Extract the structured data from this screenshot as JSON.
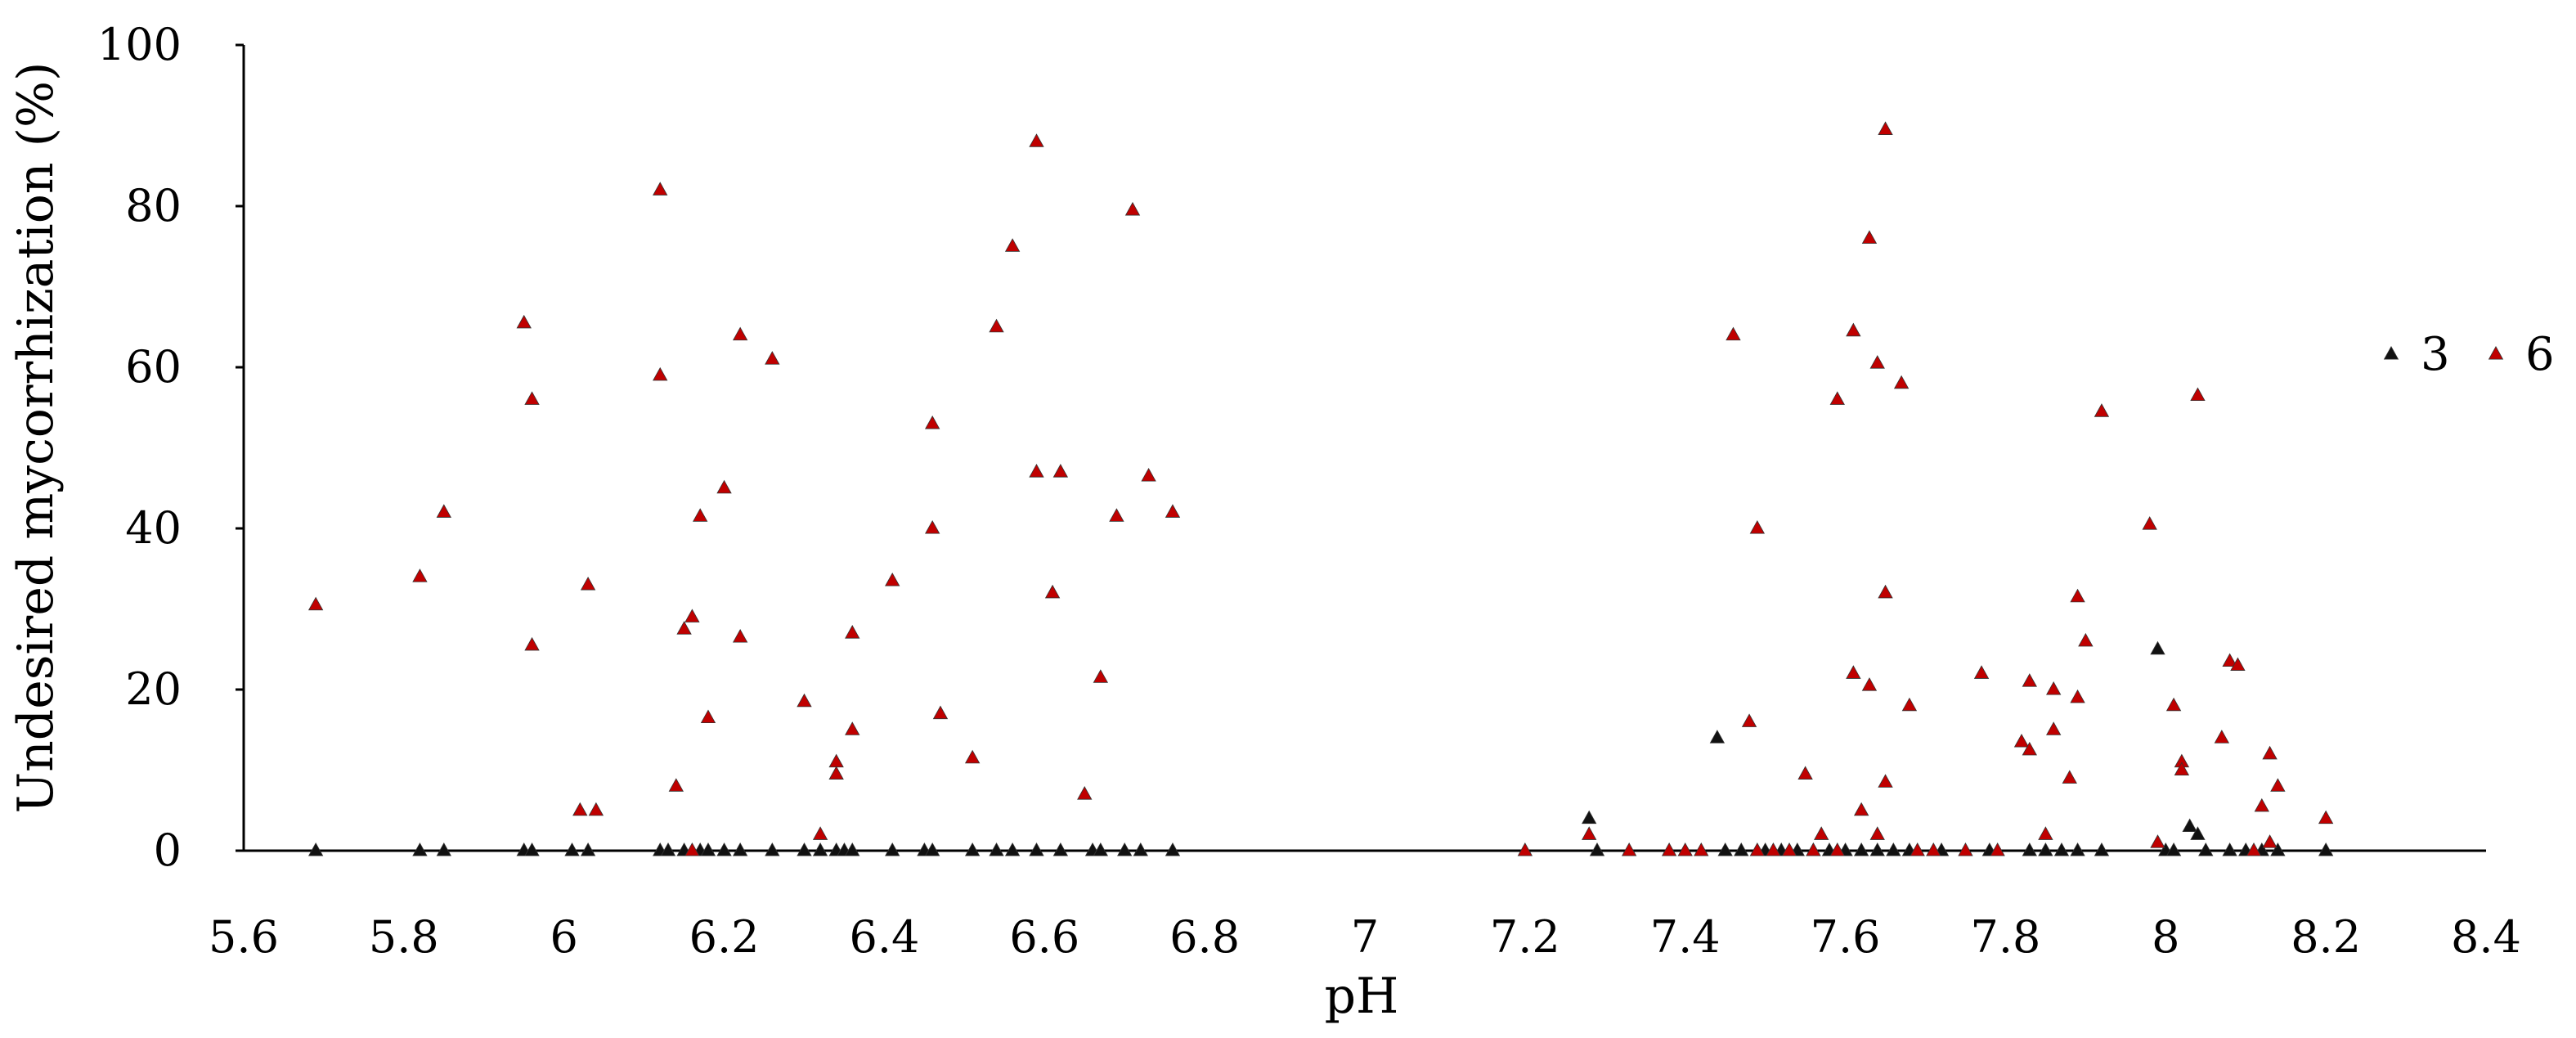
{
  "chart_data": {
    "type": "scatter",
    "title": "",
    "xlabel": "pH",
    "ylabel": "Undesired mycorrhization (%)",
    "xlim": [
      5.6,
      8.4
    ],
    "ylim": [
      0,
      100
    ],
    "x_ticks": [
      "5.6",
      "5.8",
      "6",
      "6.2",
      "6.4",
      "6.6",
      "6.8",
      "7",
      "7.2",
      "7.4",
      "7.6",
      "7.8",
      "8",
      "8.2",
      "8.4"
    ],
    "y_ticks": [
      "0",
      "20",
      "40",
      "60",
      "80",
      "100"
    ],
    "grid": false,
    "legend_position": "right",
    "series": [
      {
        "name": "3",
        "color": "#111111",
        "marker": "triangle",
        "points": [
          [
            5.69,
            0
          ],
          [
            5.82,
            0
          ],
          [
            5.85,
            0
          ],
          [
            5.95,
            0
          ],
          [
            5.96,
            0
          ],
          [
            6.01,
            0
          ],
          [
            6.03,
            0
          ],
          [
            6.12,
            0
          ],
          [
            6.13,
            0
          ],
          [
            6.15,
            0
          ],
          [
            6.17,
            0
          ],
          [
            6.18,
            0
          ],
          [
            6.2,
            0
          ],
          [
            6.22,
            0
          ],
          [
            6.26,
            0
          ],
          [
            6.3,
            0
          ],
          [
            6.32,
            0
          ],
          [
            6.34,
            0
          ],
          [
            6.35,
            0
          ],
          [
            6.36,
            0
          ],
          [
            6.41,
            0
          ],
          [
            6.45,
            0
          ],
          [
            6.46,
            0
          ],
          [
            6.51,
            0
          ],
          [
            6.54,
            0
          ],
          [
            6.56,
            0
          ],
          [
            6.59,
            0
          ],
          [
            6.62,
            0
          ],
          [
            6.66,
            0
          ],
          [
            6.67,
            0
          ],
          [
            6.7,
            0
          ],
          [
            6.72,
            0
          ],
          [
            6.76,
            0
          ],
          [
            7.28,
            4
          ],
          [
            7.29,
            0
          ],
          [
            7.44,
            14
          ],
          [
            7.45,
            0
          ],
          [
            7.47,
            0
          ],
          [
            7.5,
            0
          ],
          [
            7.52,
            0
          ],
          [
            7.54,
            0
          ],
          [
            7.56,
            0
          ],
          [
            7.58,
            0
          ],
          [
            7.6,
            0
          ],
          [
            7.62,
            0
          ],
          [
            7.64,
            0
          ],
          [
            7.66,
            0
          ],
          [
            7.68,
            0
          ],
          [
            7.72,
            0
          ],
          [
            7.78,
            0
          ],
          [
            7.83,
            0
          ],
          [
            7.85,
            0
          ],
          [
            7.87,
            0
          ],
          [
            7.89,
            0
          ],
          [
            7.92,
            0
          ],
          [
            7.99,
            25
          ],
          [
            8.0,
            0
          ],
          [
            8.01,
            0
          ],
          [
            8.03,
            3
          ],
          [
            8.04,
            2
          ],
          [
            8.05,
            0
          ],
          [
            8.08,
            0
          ],
          [
            8.1,
            0
          ],
          [
            8.12,
            0
          ],
          [
            8.14,
            0
          ],
          [
            8.2,
            0
          ]
        ]
      },
      {
        "name": "6",
        "color": "#c00000",
        "marker": "triangle",
        "points": [
          [
            5.69,
            30.5
          ],
          [
            5.82,
            34
          ],
          [
            5.85,
            42
          ],
          [
            5.95,
            65.5
          ],
          [
            5.96,
            56
          ],
          [
            5.96,
            25.5
          ],
          [
            6.02,
            5
          ],
          [
            6.03,
            33
          ],
          [
            6.04,
            5
          ],
          [
            6.12,
            82
          ],
          [
            6.12,
            59
          ],
          [
            6.14,
            8
          ],
          [
            6.15,
            27.5
          ],
          [
            6.16,
            29
          ],
          [
            6.17,
            41.5
          ],
          [
            6.18,
            16.5
          ],
          [
            6.2,
            45
          ],
          [
            6.22,
            64
          ],
          [
            6.22,
            26.5
          ],
          [
            6.26,
            61
          ],
          [
            6.3,
            18.5
          ],
          [
            6.32,
            2
          ],
          [
            6.34,
            11
          ],
          [
            6.34,
            9.5
          ],
          [
            6.36,
            27
          ],
          [
            6.36,
            15
          ],
          [
            6.41,
            33.5
          ],
          [
            6.46,
            53
          ],
          [
            6.46,
            40
          ],
          [
            6.47,
            17
          ],
          [
            6.51,
            11.5
          ],
          [
            6.54,
            65
          ],
          [
            6.56,
            75
          ],
          [
            6.59,
            88
          ],
          [
            6.59,
            47
          ],
          [
            6.61,
            32
          ],
          [
            6.62,
            47
          ],
          [
            6.65,
            7
          ],
          [
            6.67,
            21.5
          ],
          [
            6.69,
            41.5
          ],
          [
            6.71,
            79.5
          ],
          [
            6.73,
            46.5
          ],
          [
            6.76,
            42
          ],
          [
            6.16,
            0
          ],
          [
            7.2,
            0
          ],
          [
            7.28,
            2
          ],
          [
            7.33,
            0
          ],
          [
            7.38,
            0
          ],
          [
            7.4,
            0
          ],
          [
            7.42,
            0
          ],
          [
            7.46,
            64
          ],
          [
            7.48,
            16
          ],
          [
            7.49,
            40
          ],
          [
            7.49,
            0
          ],
          [
            7.51,
            0
          ],
          [
            7.53,
            0
          ],
          [
            7.55,
            9.5
          ],
          [
            7.56,
            0
          ],
          [
            7.57,
            2
          ],
          [
            7.59,
            56
          ],
          [
            7.59,
            0
          ],
          [
            7.61,
            64.5
          ],
          [
            7.61,
            22
          ],
          [
            7.62,
            5
          ],
          [
            7.63,
            20.5
          ],
          [
            7.63,
            76
          ],
          [
            7.64,
            60.5
          ],
          [
            7.64,
            2
          ],
          [
            7.65,
            89.5
          ],
          [
            7.65,
            8.5
          ],
          [
            7.65,
            32
          ],
          [
            7.67,
            58
          ],
          [
            7.68,
            18
          ],
          [
            7.69,
            0
          ],
          [
            7.71,
            0
          ],
          [
            7.75,
            0
          ],
          [
            7.77,
            22
          ],
          [
            7.79,
            0
          ],
          [
            7.82,
            13.5
          ],
          [
            7.83,
            21
          ],
          [
            7.83,
            12.5
          ],
          [
            7.85,
            2
          ],
          [
            7.86,
            20
          ],
          [
            7.86,
            15
          ],
          [
            7.88,
            9
          ],
          [
            7.89,
            19
          ],
          [
            7.89,
            31.5
          ],
          [
            7.9,
            26
          ],
          [
            7.92,
            54.5
          ],
          [
            7.98,
            40.5
          ],
          [
            7.99,
            1
          ],
          [
            8.01,
            18
          ],
          [
            8.02,
            11
          ],
          [
            8.02,
            10
          ],
          [
            8.04,
            56.5
          ],
          [
            8.07,
            14
          ],
          [
            8.08,
            23.5
          ],
          [
            8.09,
            23
          ],
          [
            8.11,
            0
          ],
          [
            8.12,
            5.5
          ],
          [
            8.13,
            1
          ],
          [
            8.13,
            12
          ],
          [
            8.14,
            8
          ],
          [
            8.2,
            4
          ]
        ]
      }
    ]
  }
}
